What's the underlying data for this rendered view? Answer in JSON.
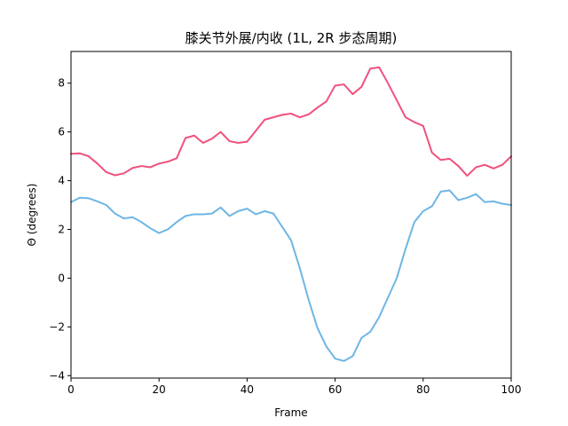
{
  "chart_data": {
    "type": "line",
    "title": "膝关节外展/内收 (1L, 2R 步态周期)",
    "xlabel": "Frame",
    "ylabel": "Θ (degrees)",
    "xlim": [
      0,
      100
    ],
    "ylim": [
      -4.1,
      9.3
    ],
    "xticks": [
      0,
      20,
      40,
      60,
      80,
      100
    ],
    "xtick_labels": [
      "0",
      "20",
      "40",
      "60",
      "80",
      "100"
    ],
    "yticks": [
      -4,
      -2,
      0,
      2,
      4,
      6,
      8
    ],
    "ytick_labels": [
      "−4",
      "−2",
      "0",
      "2",
      "4",
      "6",
      "8"
    ],
    "grid": false,
    "legend": "none",
    "x": [
      0,
      2,
      4,
      6,
      8,
      10,
      12,
      14,
      16,
      18,
      20,
      22,
      24,
      26,
      28,
      30,
      32,
      34,
      36,
      38,
      40,
      42,
      44,
      46,
      48,
      50,
      52,
      54,
      56,
      58,
      60,
      62,
      64,
      66,
      68,
      70,
      72,
      74,
      76,
      78,
      80,
      82,
      84,
      86,
      88,
      90,
      92,
      94,
      96,
      98,
      100
    ],
    "series": [
      {
        "color": "#f0517d",
        "values": [
          5.1,
          5.12,
          5.0,
          4.7,
          4.35,
          4.22,
          4.3,
          4.52,
          4.6,
          4.55,
          4.7,
          4.78,
          4.92,
          5.75,
          5.85,
          5.55,
          5.72,
          6.0,
          5.62,
          5.55,
          5.6,
          6.05,
          6.5,
          6.6,
          6.7,
          6.75,
          6.6,
          6.72,
          7.0,
          7.25,
          7.9,
          7.95,
          7.55,
          7.85,
          8.6,
          8.65,
          8.0,
          7.3,
          6.6,
          6.4,
          6.25,
          5.15,
          4.85,
          4.9,
          4.6,
          4.2,
          4.55,
          4.65,
          4.5,
          4.65,
          5.0
        ]
      },
      {
        "color": "#6fb6e4",
        "values": [
          3.12,
          3.3,
          3.28,
          3.15,
          3.0,
          2.65,
          2.45,
          2.5,
          2.3,
          2.05,
          1.85,
          2.0,
          2.3,
          2.55,
          2.62,
          2.62,
          2.65,
          2.9,
          2.55,
          2.75,
          2.85,
          2.62,
          2.75,
          2.65,
          2.1,
          1.55,
          0.4,
          -0.9,
          -2.05,
          -2.8,
          -3.3,
          -3.4,
          -3.2,
          -2.45,
          -2.2,
          -1.6,
          -0.8,
          0.0,
          1.2,
          2.3,
          2.75,
          2.95,
          3.55,
          3.6,
          3.2,
          3.3,
          3.45,
          3.12,
          3.15,
          3.05,
          3.0
        ]
      }
    ]
  }
}
